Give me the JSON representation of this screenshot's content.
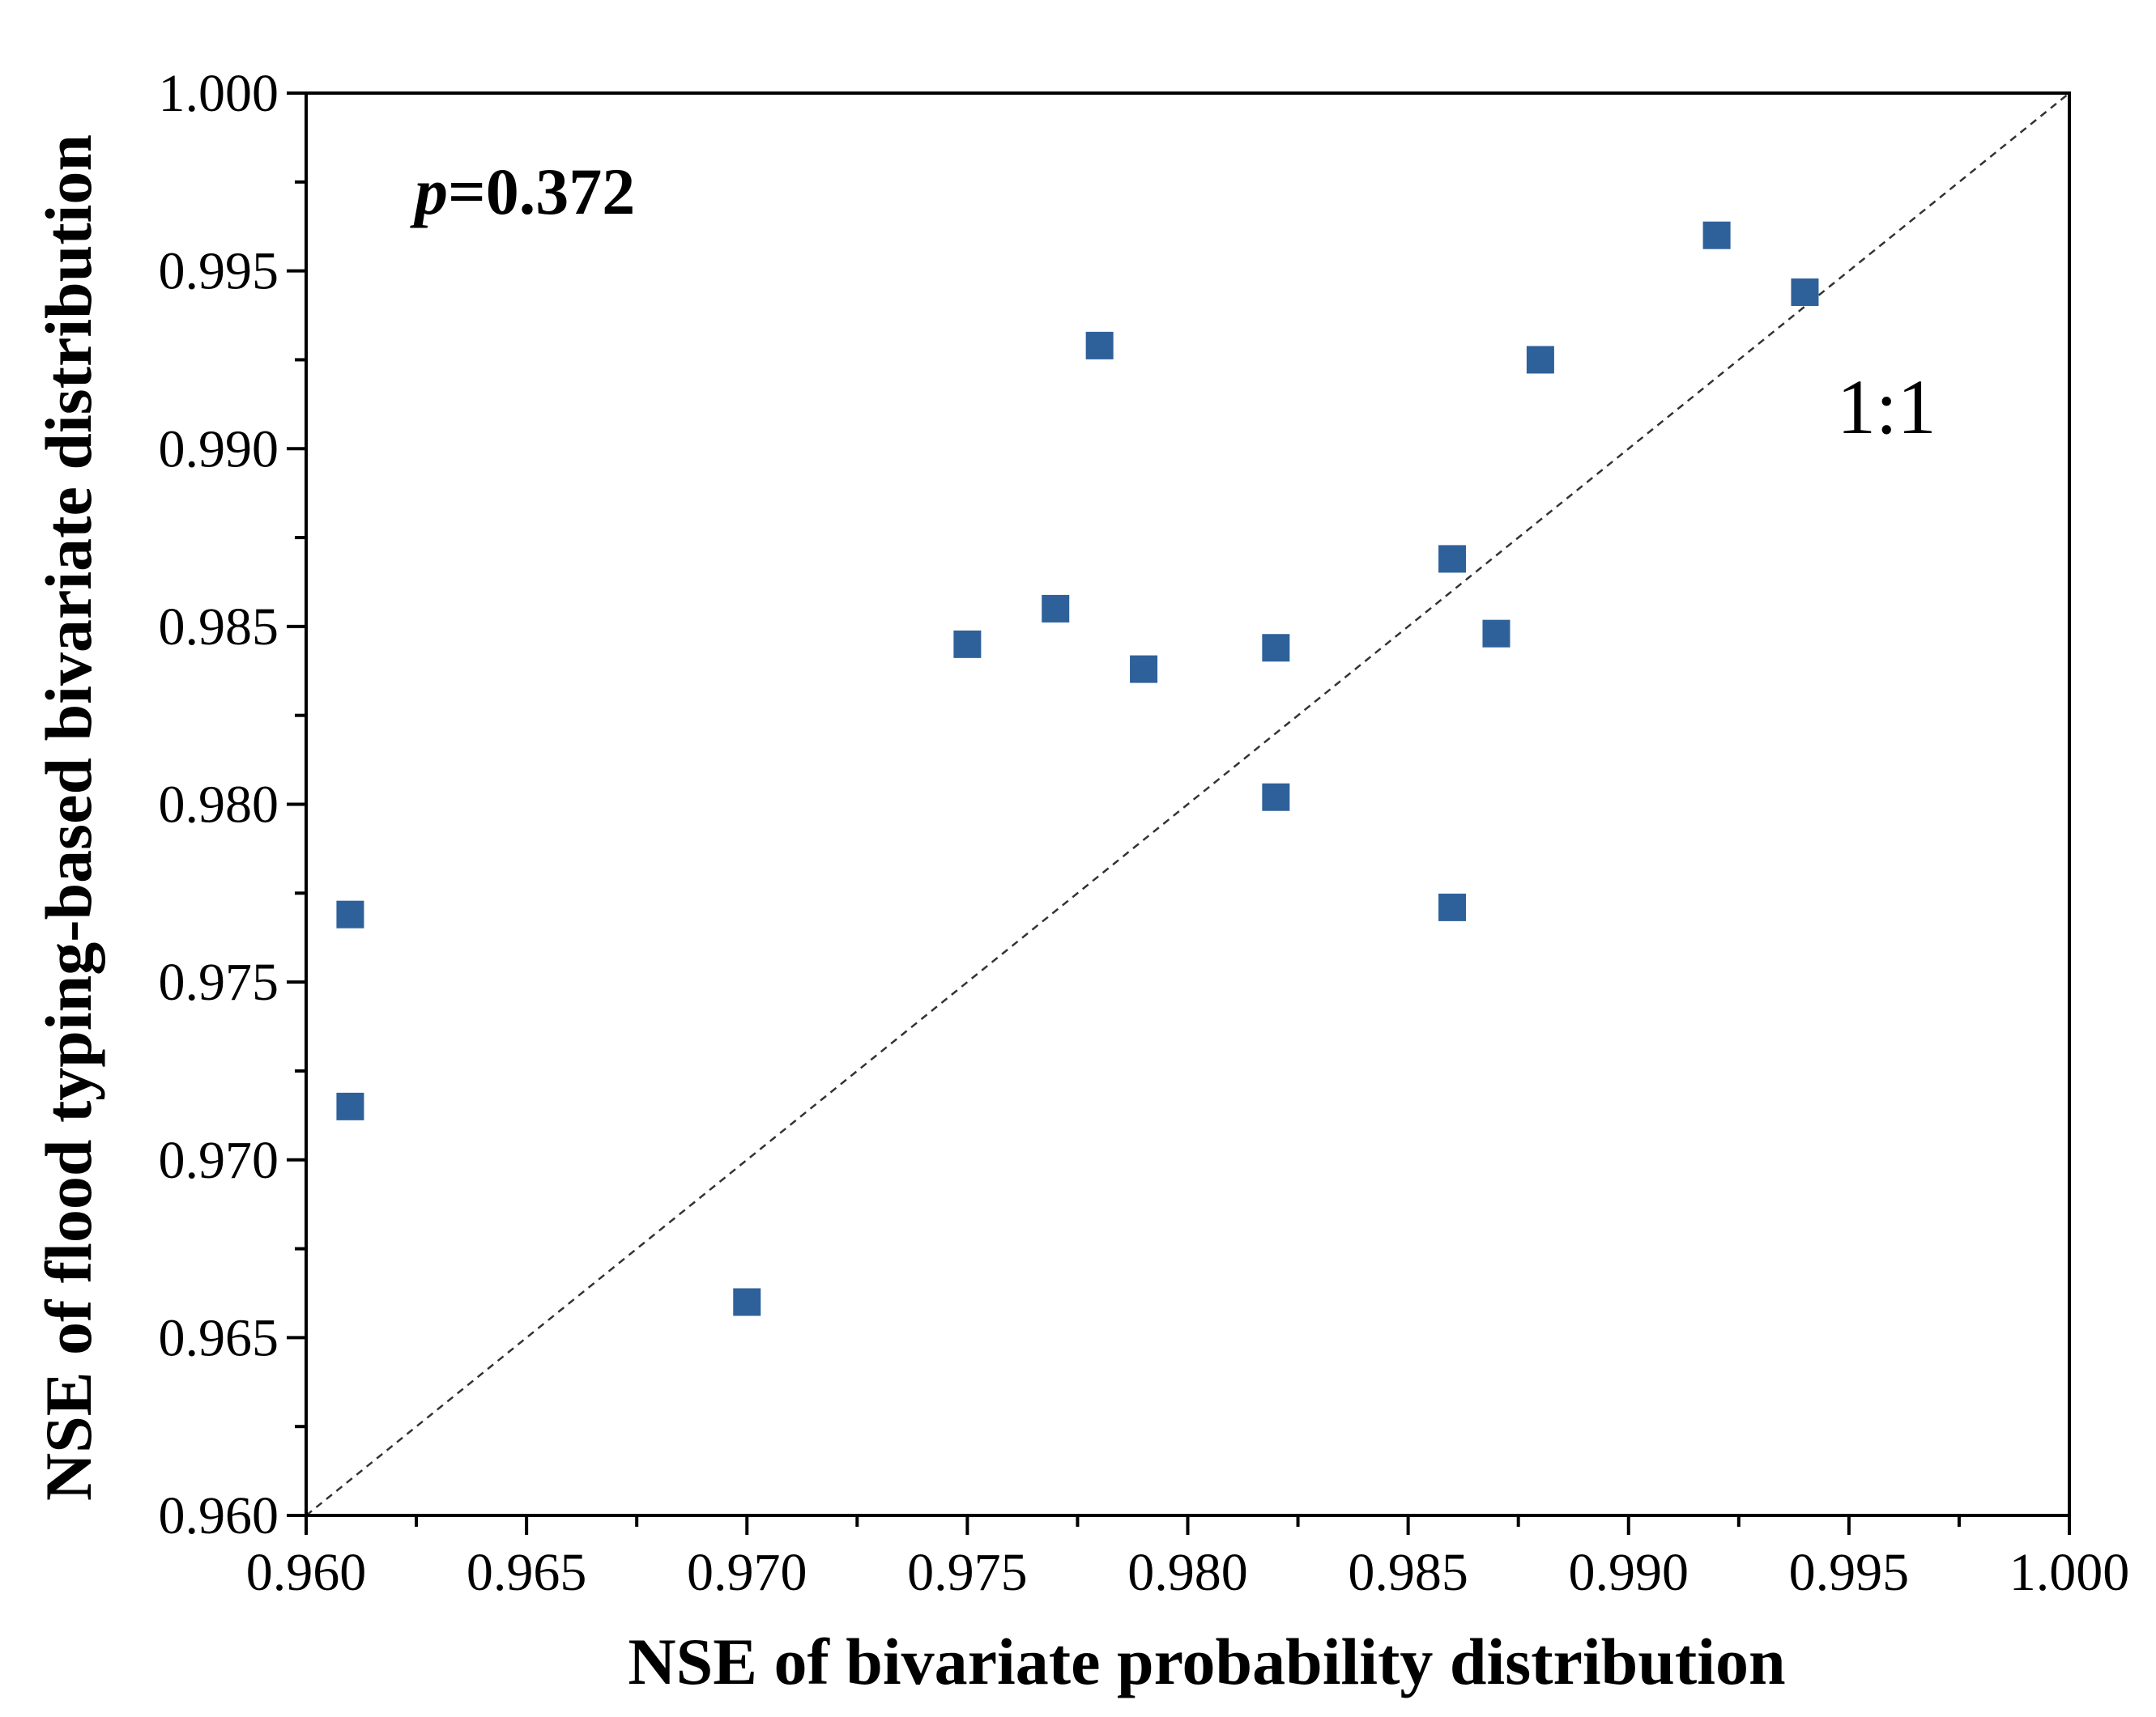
{
  "chart_data": {
    "type": "scatter",
    "title": "",
    "xlabel": "NSE of bivariate probability distribution",
    "ylabel": "NSE of flood typing-based bivariate distribution",
    "xlim": [
      0.96,
      1.0
    ],
    "ylim": [
      0.96,
      1.0
    ],
    "x_ticks": [
      "0.960",
      "0.965",
      "0.970",
      "0.975",
      "0.980",
      "0.985",
      "0.990",
      "0.995",
      "1.000"
    ],
    "y_ticks": [
      "0.960",
      "0.965",
      "0.970",
      "0.975",
      "0.980",
      "0.985",
      "0.990",
      "0.995",
      "1.000"
    ],
    "grid": false,
    "marker": "square",
    "marker_color": "#2e619a",
    "reference_line": {
      "type": "1:1",
      "label": "1:1",
      "style": "dashed"
    },
    "annotation": {
      "italic_part": "p",
      "value_part": "=0.372"
    },
    "points": [
      {
        "x": 0.961,
        "y": 0.9769
      },
      {
        "x": 0.961,
        "y": 0.9715
      },
      {
        "x": 0.97,
        "y": 0.966
      },
      {
        "x": 0.975,
        "y": 0.9845
      },
      {
        "x": 0.977,
        "y": 0.9855
      },
      {
        "x": 0.978,
        "y": 0.9929
      },
      {
        "x": 0.979,
        "y": 0.9838
      },
      {
        "x": 0.982,
        "y": 0.9844
      },
      {
        "x": 0.982,
        "y": 0.9802
      },
      {
        "x": 0.986,
        "y": 0.9869
      },
      {
        "x": 0.986,
        "y": 0.9771
      },
      {
        "x": 0.987,
        "y": 0.9848
      },
      {
        "x": 0.988,
        "y": 0.9925
      },
      {
        "x": 0.992,
        "y": 0.996
      },
      {
        "x": 0.994,
        "y": 0.9944
      }
    ]
  }
}
